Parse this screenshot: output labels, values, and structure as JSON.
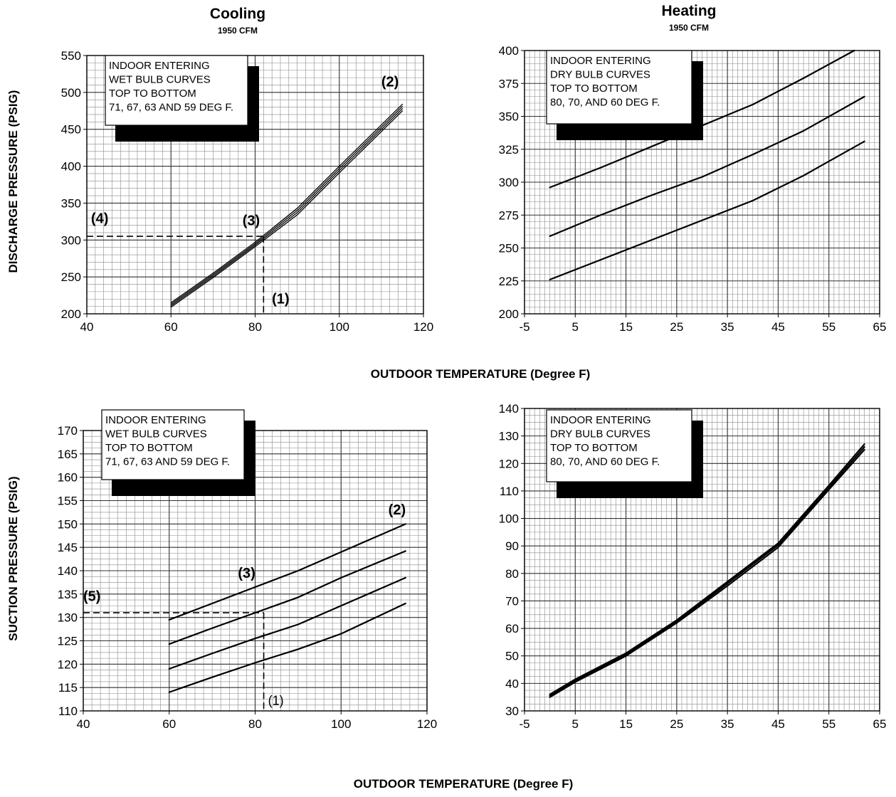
{
  "figure": {
    "titles": {
      "cooling": "Cooling",
      "cooling_sub": "1950 CFM",
      "heating": "Heating",
      "heating_sub": "1950 CFM"
    },
    "axis_labels": {
      "discharge_y": "DISCHARGE PRESSURE (PSIG)",
      "suction_y": "SUCTION PRESSURE (PSIG)",
      "x_top": "OUTDOOR TEMPERATURE (Degree F)",
      "x_bottom": "OUTDOOR TEMPERATURE (Degree F)"
    },
    "colors": {
      "ink": "#000000",
      "paper": "#ffffff"
    }
  },
  "chart_data": [
    {
      "id": "cooling-discharge",
      "type": "line",
      "title": "Cooling",
      "subtitle": "1950 CFM",
      "xlabel": "",
      "ylabel": "DISCHARGE PRESSURE (PSIG)",
      "xlim": [
        40,
        120
      ],
      "ylim": [
        200,
        550
      ],
      "xticks": [
        40,
        60,
        80,
        100,
        120
      ],
      "yticks": [
        200,
        250,
        300,
        350,
        400,
        450,
        500,
        550
      ],
      "grid": true,
      "legend_lines": [
        "INDOOR ENTERING",
        "WET BULB CURVES",
        "TOP TO BOTTOM",
        "71, 67, 63 AND 59 DEG F."
      ],
      "series": [
        {
          "x": [
            60,
            70,
            80,
            90,
            100,
            115
          ],
          "y": [
            215,
            255,
            297,
            343,
            400,
            484
          ]
        },
        {
          "x": [
            60,
            70,
            80,
            90,
            100,
            115
          ],
          "y": [
            213,
            253,
            295,
            340,
            397,
            481
          ]
        },
        {
          "x": [
            60,
            70,
            80,
            90,
            100,
            115
          ],
          "y": [
            211,
            251,
            293,
            337,
            394,
            478
          ]
        },
        {
          "x": [
            60,
            70,
            80,
            90,
            100,
            115
          ],
          "y": [
            209,
            249,
            291,
            334,
            391,
            475
          ]
        }
      ],
      "reference_lines": [
        {
          "from": [
            40,
            305
          ],
          "to": [
            82,
            305
          ]
        },
        {
          "from": [
            82,
            305
          ],
          "to": [
            82,
            200
          ]
        }
      ],
      "annotations": [
        {
          "text": "(1)",
          "x": 84,
          "y": 214,
          "style": "bold"
        },
        {
          "text": "(2)",
          "x": 110,
          "y": 508,
          "style": "bold"
        },
        {
          "text": "(3)",
          "x": 77,
          "y": 320,
          "style": "bold"
        },
        {
          "text": "(4)",
          "x": 41,
          "y": 323,
          "style": "bold"
        }
      ]
    },
    {
      "id": "heating-discharge",
      "type": "line",
      "title": "Heating",
      "subtitle": "1950 CFM",
      "xlabel": "",
      "ylabel": "",
      "xlim": [
        -5,
        65
      ],
      "ylim": [
        200,
        400
      ],
      "xticks": [
        -5,
        5,
        15,
        25,
        35,
        45,
        55,
        65
      ],
      "yticks": [
        200,
        225,
        250,
        275,
        300,
        325,
        350,
        375,
        400
      ],
      "grid": true,
      "legend_lines": [
        "INDOOR ENTERING",
        "DRY BULB CURVES",
        "TOP TO BOTTOM",
        "80, 70, AND 60 DEG F."
      ],
      "series": [
        {
          "x": [
            0,
            10,
            20,
            30,
            40,
            50,
            60
          ],
          "y": [
            296,
            311,
            327,
            343,
            359,
            379,
            400
          ]
        },
        {
          "x": [
            0,
            10,
            20,
            30,
            40,
            50,
            62
          ],
          "y": [
            259,
            275,
            290,
            304,
            321,
            339,
            365
          ]
        },
        {
          "x": [
            0,
            10,
            20,
            30,
            40,
            50,
            62
          ],
          "y": [
            226,
            241,
            256,
            271,
            286,
            305,
            331
          ]
        }
      ],
      "reference_lines": [],
      "annotations": []
    },
    {
      "id": "cooling-suction",
      "type": "line",
      "title": "",
      "xlabel": "",
      "ylabel": "SUCTION PRESSURE (PSIG)",
      "xlim": [
        40,
        120
      ],
      "ylim": [
        110,
        170
      ],
      "xticks": [
        40,
        60,
        80,
        100,
        120
      ],
      "yticks": [
        110,
        115,
        120,
        125,
        130,
        135,
        140,
        145,
        150,
        155,
        160,
        165,
        170
      ],
      "grid": true,
      "legend_lines": [
        "INDOOR ENTERING",
        "WET BULB CURVES",
        "TOP TO BOTTOM",
        "71, 67, 63 AND 59 DEG F."
      ],
      "series": [
        {
          "x": [
            60,
            70,
            80,
            90,
            100,
            115
          ],
          "y": [
            129.5,
            133,
            136.5,
            140,
            144,
            150
          ]
        },
        {
          "x": [
            60,
            70,
            80,
            90,
            100,
            115
          ],
          "y": [
            124.3,
            127.7,
            131,
            134.3,
            138.5,
            144.2
          ]
        },
        {
          "x": [
            60,
            70,
            80,
            90,
            100,
            115
          ],
          "y": [
            119,
            122.3,
            125.5,
            128.5,
            132.5,
            138.5
          ]
        },
        {
          "x": [
            60,
            70,
            80,
            90,
            100,
            115
          ],
          "y": [
            114,
            117.2,
            120.3,
            123.2,
            126.5,
            133
          ]
        }
      ],
      "reference_lines": [
        {
          "from": [
            40,
            131
          ],
          "to": [
            82,
            131
          ]
        },
        {
          "from": [
            82,
            131
          ],
          "to": [
            82,
            110
          ]
        }
      ],
      "annotations": [
        {
          "text": "(1)",
          "x": 83,
          "y": 111.3,
          "style": "plain"
        },
        {
          "text": "(2)",
          "x": 111,
          "y": 152,
          "style": "bold"
        },
        {
          "text": "(3)",
          "x": 76,
          "y": 138.5,
          "style": "bold"
        },
        {
          "text": "(5)",
          "x": 40,
          "y": 133.5,
          "style": "bold"
        }
      ]
    },
    {
      "id": "heating-suction",
      "type": "line",
      "title": "",
      "xlabel": "",
      "ylabel": "",
      "xlim": [
        -5,
        65
      ],
      "ylim": [
        30,
        140
      ],
      "xticks": [
        -5,
        5,
        15,
        25,
        35,
        45,
        55,
        65
      ],
      "yticks": [
        30,
        40,
        50,
        60,
        70,
        80,
        90,
        100,
        110,
        120,
        130,
        140
      ],
      "grid": true,
      "legend_lines": [
        "INDOOR ENTERING",
        "DRY BULB CURVES",
        "TOP TO BOTTOM",
        "80, 70, AND 60 DEG F."
      ],
      "series": [
        {
          "x": [
            0,
            5,
            15,
            25,
            35,
            45,
            55,
            62
          ],
          "y": [
            36,
            41.5,
            51,
            63,
            77,
            91,
            112,
            127
          ]
        },
        {
          "x": [
            0,
            5,
            15,
            25,
            35,
            45,
            55,
            62
          ],
          "y": [
            35.5,
            41,
            50.5,
            62.5,
            76.3,
            90.3,
            111.2,
            126
          ]
        },
        {
          "x": [
            0,
            5,
            15,
            25,
            35,
            45,
            55,
            62
          ],
          "y": [
            35,
            40.5,
            50,
            62,
            75.5,
            89.5,
            110.5,
            125
          ]
        }
      ],
      "reference_lines": [],
      "annotations": []
    }
  ]
}
